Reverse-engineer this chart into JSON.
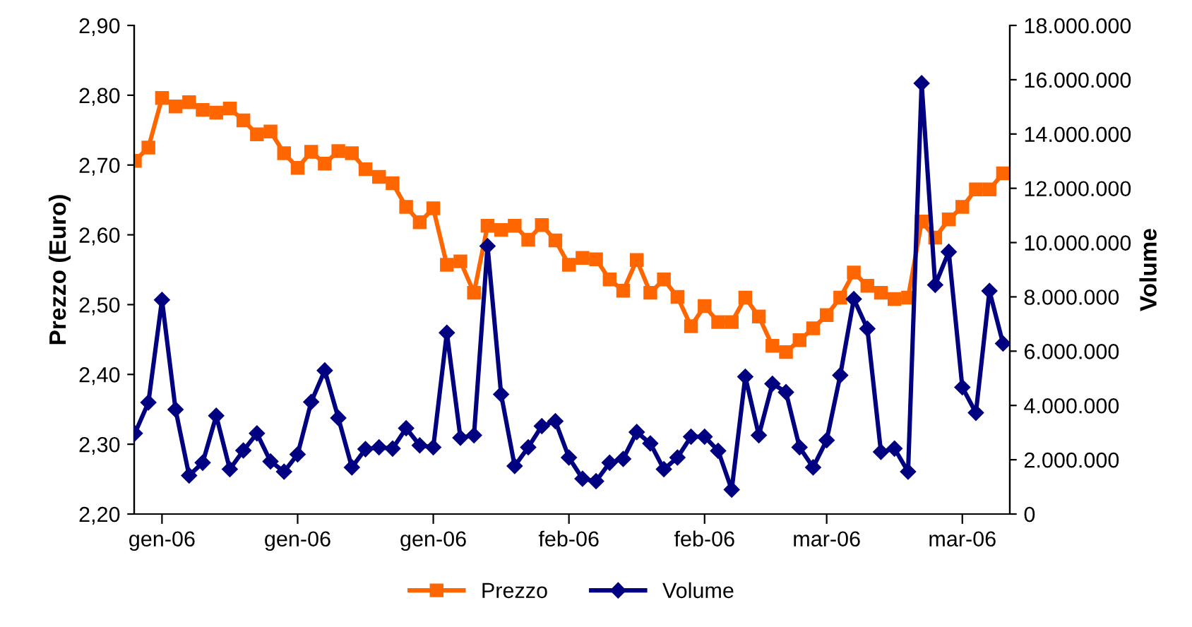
{
  "chart_data": {
    "type": "line",
    "ylabel": "Prezzo (Euro)",
    "y2label": "Volume",
    "categories": [
      null,
      null,
      "gen-06",
      null,
      null,
      null,
      null,
      null,
      null,
      null,
      null,
      null,
      "gen-06",
      null,
      null,
      null,
      null,
      null,
      null,
      null,
      null,
      null,
      "gen-06",
      null,
      null,
      null,
      null,
      null,
      null,
      null,
      null,
      null,
      "feb-06",
      null,
      null,
      null,
      null,
      null,
      null,
      null,
      null,
      null,
      "feb-06",
      null,
      null,
      null,
      null,
      null,
      null,
      null,
      null,
      "mar-06",
      null,
      null,
      null,
      null,
      null,
      null,
      null,
      null,
      null,
      "mar-06",
      null,
      null,
      null
    ],
    "series": [
      {
        "name": "Prezzo",
        "color": "#ff6600",
        "marker": "square",
        "values": [
          2.706,
          2.725,
          2.796,
          2.784,
          2.79,
          2.779,
          2.775,
          2.781,
          2.764,
          2.744,
          2.748,
          2.717,
          2.696,
          2.719,
          2.702,
          2.72,
          2.717,
          2.694,
          2.683,
          2.674,
          2.64,
          2.618,
          2.638,
          2.557,
          2.562,
          2.517,
          2.613,
          2.607,
          2.613,
          2.593,
          2.614,
          2.592,
          2.557,
          2.567,
          2.565,
          2.536,
          2.52,
          2.564,
          2.517,
          2.536,
          2.511,
          2.469,
          2.498,
          2.475,
          2.475,
          2.51,
          2.483,
          2.441,
          2.432,
          2.449,
          2.466,
          2.485,
          2.51,
          2.546,
          2.527,
          2.517,
          2.508,
          2.51,
          2.619,
          2.596,
          2.622,
          2.64,
          2.665,
          2.665,
          2.688
        ]
      },
      {
        "name": "Volume",
        "color": "#000080",
        "marker": "diamond",
        "axis": "y2",
        "values": [
          2970000,
          4110000,
          7890000,
          3850000,
          1420000,
          1890000,
          3620000,
          1650000,
          2340000,
          2970000,
          1940000,
          1560000,
          2200000,
          4130000,
          5290000,
          3540000,
          1720000,
          2390000,
          2460000,
          2410000,
          3160000,
          2530000,
          2460000,
          6680000,
          2810000,
          2900000,
          9870000,
          4410000,
          1770000,
          2460000,
          3240000,
          3420000,
          2080000,
          1300000,
          1210000,
          1890000,
          2030000,
          3020000,
          2600000,
          1650000,
          2080000,
          2850000,
          2850000,
          2330000,
          900000,
          5060000,
          2900000,
          4800000,
          4490000,
          2460000,
          1720000,
          2720000,
          5110000,
          7920000,
          6830000,
          2290000,
          2410000,
          1560000,
          15870000,
          8440000,
          9660000,
          4670000,
          3730000,
          8220000,
          6280000
        ]
      }
    ],
    "ylim": [
      2.2,
      2.9
    ],
    "yticks": [
      {
        "value": 2.2,
        "label": "2,20"
      },
      {
        "value": 2.3,
        "label": "2,30"
      },
      {
        "value": 2.4,
        "label": "2,40"
      },
      {
        "value": 2.5,
        "label": "2,50"
      },
      {
        "value": 2.6,
        "label": "2,60"
      },
      {
        "value": 2.7,
        "label": "2,70"
      },
      {
        "value": 2.8,
        "label": "2,80"
      },
      {
        "value": 2.9,
        "label": "2,90"
      }
    ],
    "y2lim": [
      0,
      18000000
    ],
    "y2ticks": [
      0,
      {
        "value": 2000000,
        "label": "2.000.000"
      },
      {
        "value": 4000000,
        "label": "4.000.000"
      },
      {
        "value": 6000000,
        "label": "6.000.000"
      },
      {
        "value": 8000000,
        "label": "8.000.000"
      },
      {
        "value": 10000000,
        "label": "10.000.000"
      },
      {
        "value": 12000000,
        "label": "12.000.000"
      },
      {
        "value": 14000000,
        "label": "14.000.000"
      },
      {
        "value": 16000000,
        "label": "16.000.000"
      },
      {
        "value": 18000000,
        "label": "18.000.000"
      }
    ],
    "legend": "bottom",
    "grid": false
  }
}
